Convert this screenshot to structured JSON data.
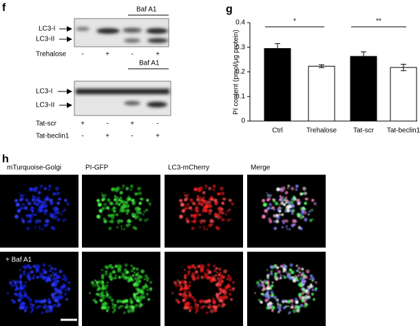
{
  "panels": {
    "f": {
      "label": "f",
      "blot1": {
        "baf": "Baf A1",
        "bands": [
          "LC3-I",
          "LC3-II"
        ],
        "row_label": "Trehalose",
        "signs": [
          "-",
          "+",
          "-",
          "+"
        ]
      },
      "blot2": {
        "baf": "Baf A1",
        "bands": [
          "LC3-I",
          "LC3-II"
        ],
        "rows": [
          {
            "label": "Tat-scr",
            "signs": [
              "+",
              "-",
              "+",
              "-"
            ]
          },
          {
            "label": "Tat-beclin1",
            "signs": [
              "-",
              "+",
              "-",
              "+"
            ]
          }
        ]
      }
    },
    "g": {
      "label": "g"
    },
    "h": {
      "label": "h",
      "columns": [
        "mTurquoise-Golgi",
        "PI-GFP",
        "LC3-mCherry",
        "Merge"
      ],
      "row2_label": "+ Baf A1"
    }
  },
  "chart_data": {
    "type": "bar",
    "ylabel": "PI content (pmol/μg protein)",
    "categories": [
      "Ctrl",
      "Trehalose",
      "Tat-scr",
      "Tat-beclin1"
    ],
    "values": [
      0.295,
      0.223,
      0.263,
      0.218
    ],
    "errors": [
      0.02,
      0.006,
      0.018,
      0.013
    ],
    "colors": [
      "#000000",
      "#ffffff",
      "#000000",
      "#ffffff"
    ],
    "ylim": [
      0,
      0.4
    ],
    "yticks": [
      0,
      0.1,
      0.2,
      0.3,
      0.4
    ],
    "annotations": [
      "*",
      "**"
    ]
  }
}
